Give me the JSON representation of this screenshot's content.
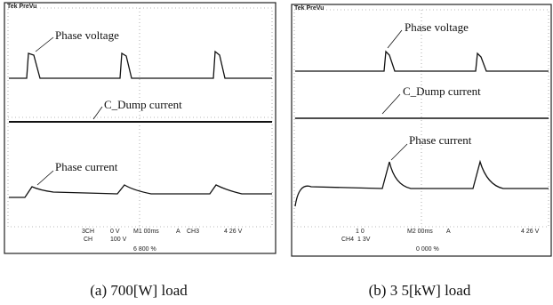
{
  "panels": [
    {
      "header": "Tek PreVu",
      "labels": [
        "Phase voltage",
        "C_Dump current",
        "Phase current"
      ],
      "readouts": [
        "3CH",
        "0 V",
        "M1 00ms",
        "A",
        "CH3",
        "4 26 V",
        "CH",
        "100 V",
        "6 800 %"
      ],
      "caption": "(a) 700[W] load"
    },
    {
      "header": "Tek PreVu",
      "labels": [
        "Phase voltage",
        "C_Dump current",
        "Phase current"
      ],
      "readouts": [
        "1 0",
        "CH4",
        "1 3V",
        "M2 00ms",
        "A",
        "4 26 V",
        "0 000 %"
      ],
      "caption": "(b) 3 5[kW] load"
    }
  ]
}
